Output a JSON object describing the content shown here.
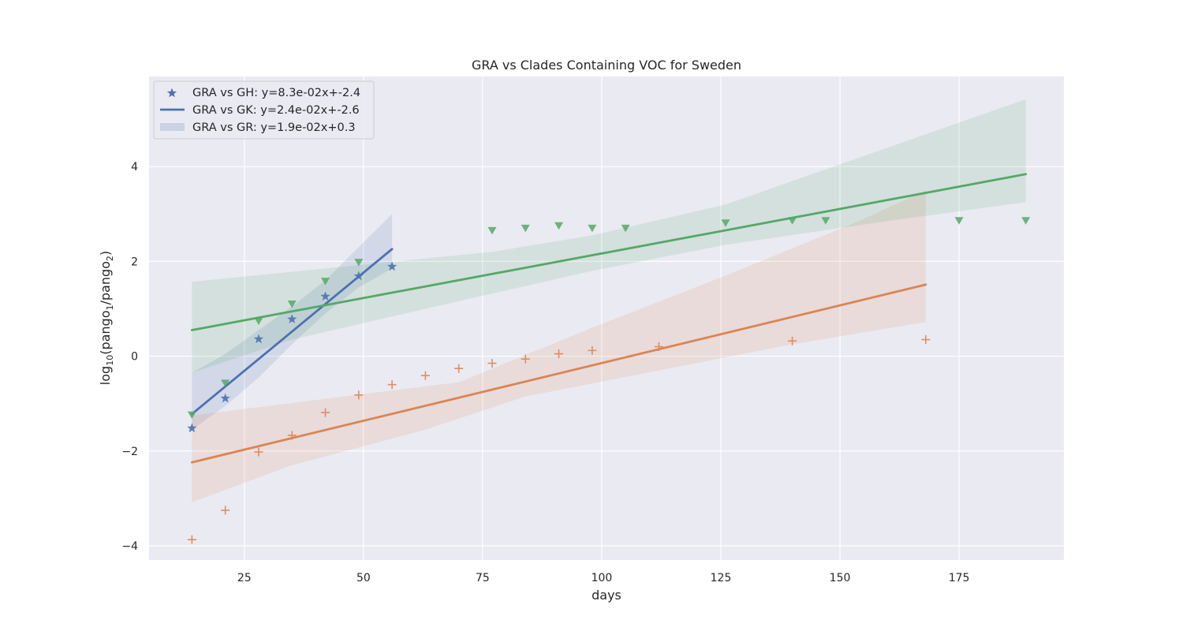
{
  "chart_data": {
    "type": "scatter",
    "title": "GRA vs Clades Containing VOC for Sweden",
    "xlabel": "days",
    "ylabel": "log10(pango1/pango2)",
    "xlim": [
      5,
      197
    ],
    "ylim": [
      -4.3,
      5.9
    ],
    "xticks": [
      25,
      50,
      75,
      100,
      125,
      150,
      175
    ],
    "yticks": [
      -4,
      -2,
      0,
      2,
      4
    ],
    "grid": true,
    "legend_position": "top-left",
    "legend_entries": [
      "GRA vs GH: y=8.3e-02x+-2.4",
      "GRA vs GK: y=2.4e-02x+-2.6",
      "GRA vs GR: y=1.9e-02x+0.3"
    ],
    "colors": {
      "background": "#eaeaf2",
      "grid": "#ffffff",
      "blue": "#4c72b0",
      "orange": "#dd8452",
      "green": "#55a868"
    },
    "series": [
      {
        "color": "#4c72b0",
        "marker": "star",
        "points": [
          [
            14,
            -1.52
          ],
          [
            21,
            -0.89
          ],
          [
            28,
            0.36
          ],
          [
            35,
            0.78
          ],
          [
            42,
            1.26
          ],
          [
            49,
            1.69
          ],
          [
            56,
            1.89
          ]
        ],
        "fit": [
          [
            14,
            -1.22
          ],
          [
            56,
            2.26
          ]
        ],
        "ci_upper": [
          [
            14,
            -0.35
          ],
          [
            21,
            0.05
          ],
          [
            28,
            0.55
          ],
          [
            35,
            1.05
          ],
          [
            42,
            1.6
          ],
          [
            49,
            2.3
          ],
          [
            56,
            3.0
          ]
        ],
        "ci_lower": [
          [
            14,
            -1.55
          ],
          [
            21,
            -1.05
          ],
          [
            28,
            -0.45
          ],
          [
            35,
            0.25
          ],
          [
            42,
            0.9
          ],
          [
            49,
            1.45
          ],
          [
            56,
            1.85
          ]
        ]
      },
      {
        "color": "#dd8452",
        "marker": "plus",
        "points": [
          [
            14,
            -3.87
          ],
          [
            21,
            -3.25
          ],
          [
            28,
            -2.02
          ],
          [
            35,
            -1.67
          ],
          [
            42,
            -1.19
          ],
          [
            49,
            -0.82
          ],
          [
            56,
            -0.6
          ],
          [
            63,
            -0.41
          ],
          [
            70,
            -0.26
          ],
          [
            77,
            -0.15
          ],
          [
            84,
            -0.06
          ],
          [
            91,
            0.05
          ],
          [
            98,
            0.12
          ],
          [
            112,
            0.2
          ],
          [
            140,
            0.32
          ],
          [
            168,
            0.35
          ]
        ],
        "fit": [
          [
            14,
            -2.24
          ],
          [
            168,
            1.51
          ]
        ],
        "ci_upper": [
          [
            14,
            -1.25
          ],
          [
            42,
            -0.9
          ],
          [
            70,
            -0.55
          ],
          [
            98,
            0.6
          ],
          [
            126,
            1.7
          ],
          [
            154,
            2.85
          ],
          [
            168,
            3.5
          ]
        ],
        "ci_lower": [
          [
            14,
            -3.08
          ],
          [
            35,
            -2.3
          ],
          [
            63,
            -1.55
          ],
          [
            84,
            -0.85
          ],
          [
            112,
            -0.3
          ],
          [
            140,
            0.25
          ],
          [
            168,
            0.72
          ]
        ]
      },
      {
        "color": "#55a868",
        "marker": "triangle-down",
        "points": [
          [
            14,
            -1.24
          ],
          [
            21,
            -0.57
          ],
          [
            28,
            0.74
          ],
          [
            35,
            1.1
          ],
          [
            42,
            1.58
          ],
          [
            49,
            1.98
          ],
          [
            77,
            2.65
          ],
          [
            84,
            2.7
          ],
          [
            91,
            2.75
          ],
          [
            98,
            2.7
          ],
          [
            105,
            2.7
          ],
          [
            126,
            2.81
          ],
          [
            140,
            2.86
          ],
          [
            147,
            2.86
          ],
          [
            175,
            2.86
          ],
          [
            189,
            2.86
          ]
        ],
        "fit": [
          [
            14,
            0.55
          ],
          [
            189,
            3.84
          ]
        ],
        "ci_upper": [
          [
            14,
            1.57
          ],
          [
            77,
            2.2
          ],
          [
            98,
            2.55
          ],
          [
            126,
            3.2
          ],
          [
            189,
            5.42
          ]
        ],
        "ci_lower": [
          [
            14,
            -0.35
          ],
          [
            35,
            0.35
          ],
          [
            63,
            1.0
          ],
          [
            98,
            1.8
          ],
          [
            126,
            2.35
          ],
          [
            160,
            2.85
          ],
          [
            189,
            3.25
          ]
        ]
      }
    ]
  }
}
